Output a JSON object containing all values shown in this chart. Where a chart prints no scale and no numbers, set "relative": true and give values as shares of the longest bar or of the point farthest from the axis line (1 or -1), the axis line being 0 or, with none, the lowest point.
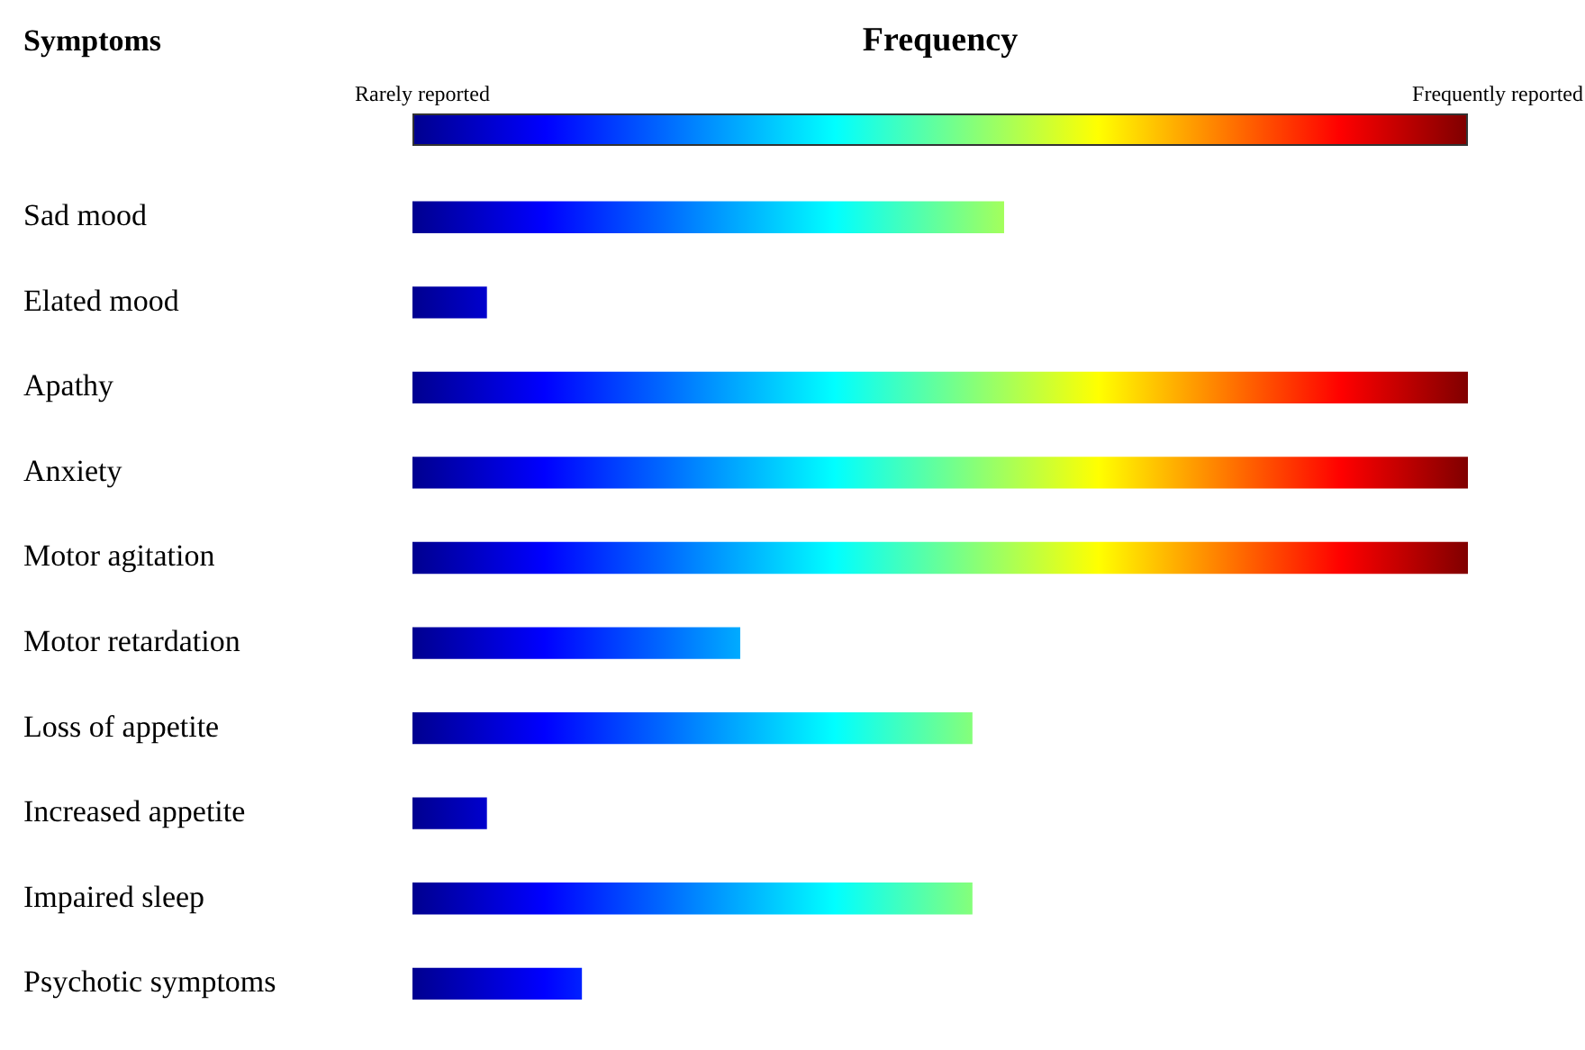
{
  "chart_data": {
    "type": "bar",
    "orientation": "horizontal",
    "relative": true,
    "title": "Frequency",
    "ylabel": "Symptoms",
    "annotations": [
      "Rarely reported",
      "Frequently reported"
    ],
    "categories": [
      "Sad mood",
      "Elated mood",
      "Apathy",
      "Anxiety",
      "Motor agitation",
      "Motor retardation",
      "Loss of appetite",
      "Increased appetite",
      "Impaired sleep",
      "Psychotic symptoms"
    ],
    "values": [
      0.56,
      0.07,
      1,
      1,
      1,
      0.31,
      0.53,
      0.07,
      0.53,
      0.16
    ]
  }
}
